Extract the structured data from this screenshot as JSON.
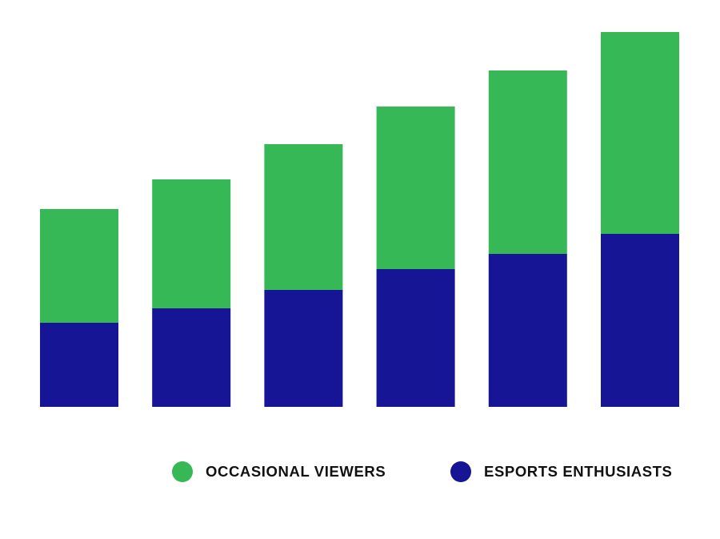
{
  "chart_data": {
    "type": "bar",
    "stacked": true,
    "title": "",
    "xlabel": "",
    "ylabel": "",
    "categories": [
      "",
      "",
      "",
      "",
      "",
      ""
    ],
    "ylim": [
      0,
      468
    ],
    "grid": false,
    "axes_visible": false,
    "legend_position": "bottom-right",
    "series": [
      {
        "name": "ESPORTS ENTHUSIASTS",
        "color": "#151596",
        "values": [
          105,
          123,
          146,
          172,
          191,
          216
        ]
      },
      {
        "name": "OCCASIONAL VIEWERS",
        "color": "#36b857",
        "values": [
          142,
          161,
          182,
          203,
          229,
          252
        ]
      }
    ]
  },
  "legend": [
    {
      "label": "OCCASIONAL VIEWERS",
      "color": "#36b857"
    },
    {
      "label": "ESPORTS ENTHUSIASTS",
      "color": "#151596"
    }
  ]
}
